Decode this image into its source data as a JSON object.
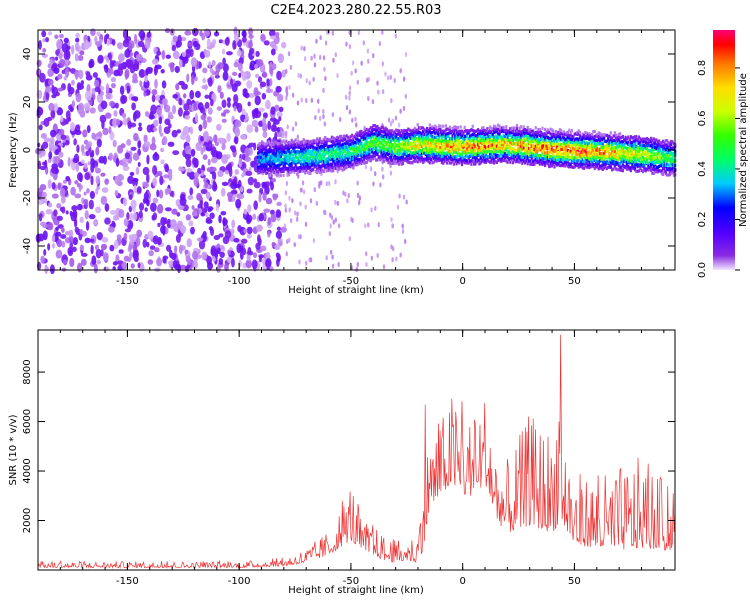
{
  "title": "C2E4.2023.280.22.55.R03",
  "chart_data": [
    {
      "type": "heatmap",
      "xlabel": "Height of straight line (km)",
      "ylabel": "Frequency (Hz)",
      "xlim": [
        -190,
        95
      ],
      "ylim": [
        -50,
        50
      ],
      "x_ticks": [
        -150,
        -100,
        -50,
        0,
        50
      ],
      "y_ticks": [
        -40,
        -20,
        0,
        20,
        40
      ],
      "colorbar": {
        "label": "Normalized spectral amplitude",
        "range": [
          0,
          0.95
        ],
        "ticks": [
          0.0,
          0.2,
          0.4,
          0.6,
          0.8
        ],
        "colormap": "rainbow"
      },
      "signal_band": {
        "description_x": [
          -90,
          -70,
          -50,
          -40,
          -30,
          -20,
          0,
          20,
          40,
          60,
          80,
          95
        ],
        "center_freq": [
          -3,
          -2,
          0,
          4,
          2,
          3,
          2,
          3,
          1,
          0,
          -1,
          -3
        ],
        "peak_amplitude": [
          0.35,
          0.45,
          0.5,
          0.6,
          0.6,
          0.75,
          0.85,
          0.8,
          0.9,
          0.85,
          0.7,
          0.5
        ]
      },
      "grid": false
    },
    {
      "type": "line",
      "xlabel": "Height of straight line (km)",
      "ylabel": "SNR (10 * v/v)",
      "xlim": [
        -190,
        95
      ],
      "ylim": [
        0,
        9700
      ],
      "x_ticks": [
        -150,
        -100,
        -50,
        0,
        50
      ],
      "y_ticks": [
        2000,
        4000,
        6000,
        8000
      ],
      "series": [
        {
          "color": "#ee3333",
          "envelope_x": [
            -190,
            -150,
            -100,
            -80,
            -70,
            -60,
            -55,
            -50,
            -45,
            -40,
            -35,
            -30,
            -25,
            -20,
            -17,
            -15,
            -10,
            -5,
            0,
            5,
            10,
            12,
            15,
            20,
            30,
            40,
            44,
            45,
            50,
            60,
            70,
            80,
            90,
            95
          ],
          "envelope_base": [
            100,
            100,
            100,
            150,
            300,
            600,
            900,
            1200,
            800,
            600,
            400,
            300,
            400,
            300,
            1000,
            2500,
            3000,
            3500,
            3000,
            3000,
            3500,
            3000,
            2000,
            1500,
            1800,
            1500,
            2000,
            1800,
            1000,
            900,
            800,
            900,
            800,
            800
          ],
          "envelope_peak": [
            350,
            350,
            350,
            500,
            900,
            1600,
            2500,
            3800,
            2000,
            1800,
            1400,
            1200,
            1300,
            1500,
            8000,
            5500,
            6000,
            7200,
            6800,
            6000,
            7300,
            6800,
            5000,
            4500,
            6300,
            5800,
            9700,
            6000,
            4000,
            3800,
            4200,
            4600,
            3600,
            3000
          ]
        }
      ],
      "grid": false
    }
  ]
}
